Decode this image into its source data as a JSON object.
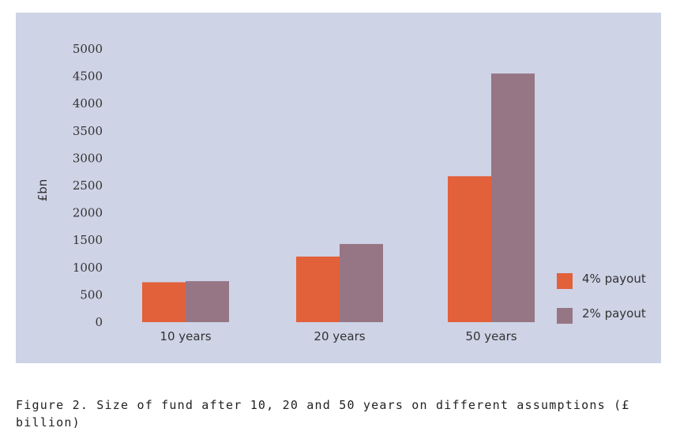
{
  "chart_data": {
    "type": "bar",
    "title": "",
    "xlabel": "",
    "ylabel": "£bn",
    "ylim": [
      0,
      5000
    ],
    "yticks": [
      0,
      500,
      1000,
      1500,
      2000,
      2500,
      3000,
      3500,
      4000,
      4500,
      5000
    ],
    "categories": [
      "10 years",
      "20 years",
      "50 years"
    ],
    "series": [
      {
        "name": "4% payout",
        "color": "#e2603a",
        "values": [
          730,
          1200,
          2670
        ]
      },
      {
        "name": "2% payout",
        "color": "#967585",
        "values": [
          750,
          1430,
          4550
        ]
      }
    ],
    "grid": false,
    "legend_position": "right"
  },
  "caption": "Figure 2. Size of fund after 10, 20 and 50 years on different assumptions (£ billion)",
  "colors": {
    "panel_background": "#ced3e6"
  }
}
